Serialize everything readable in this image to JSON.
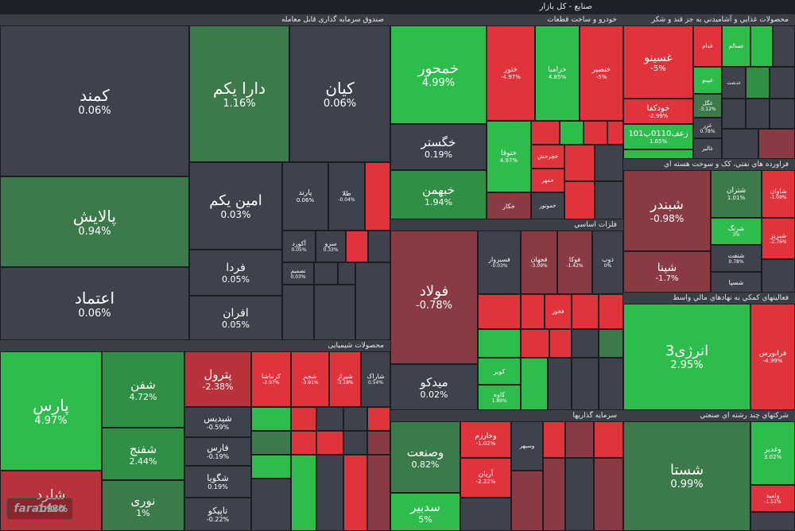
{
  "header": {
    "title": "صنایع - کل بازار"
  },
  "watermark": "farabixo",
  "colors": {
    "up": "#2ebd4c",
    "down": "#e0333c",
    "neutral": "#3d424c",
    "background": "#262931"
  },
  "sectors": {
    "fund": "صندوق سرمایه گذاری قابل معامله",
    "auto": "خودرو و ساخت قطعات",
    "food": "محصولات غذایي و آشاميدني به جز قند و شکر",
    "metal": "فلزات اساسي",
    "oil": "فراورده هاي نفتي، کک و سوخت هسته اي",
    "chem": "محصولات شیمیایی",
    "support": "فعاليتهاي كمكي به نهادهاي مالي واسط",
    "invest": "سرمايه گذاريها",
    "multi": "شرکتهاي چند رشته اي صنعتي"
  },
  "tiles": {
    "kamand": {
      "name": "کمند",
      "pct": "0.06%"
    },
    "pallaysh": {
      "name": "پالايش",
      "pct": "0.94%"
    },
    "etemad": {
      "name": "اعتماد",
      "pct": "0.06%"
    },
    "dara": {
      "name": "دارا یکم",
      "pct": "1.16%"
    },
    "kian": {
      "name": "کیان",
      "pct": "0.06%"
    },
    "amin": {
      "name": "امین یکم",
      "pct": "0.03%"
    },
    "parand": {
      "name": "پارند",
      "pct": "0.06%"
    },
    "tala": {
      "name": "طلا",
      "pct": "-0.04%"
    },
    "sarv": {
      "name": "سرو",
      "pct": "0.33%"
    },
    "akord": {
      "name": "آکورد",
      "pct": "0.05%"
    },
    "tasmim": {
      "name": "تصمیم",
      "pct": "0.03%"
    },
    "farda": {
      "name": "فردا",
      "pct": "0.05%"
    },
    "afran": {
      "name": "افران",
      "pct": "0.05%"
    },
    "khamhor": {
      "name": "خمحور",
      "pct": "4.99%"
    },
    "khetor": {
      "name": "ختور",
      "pct": "-4.97%"
    },
    "khazamia": {
      "name": "خزامیا",
      "pct": "4.85%"
    },
    "khanasir": {
      "name": "خنصیر",
      "pct": "-5%"
    },
    "khegostar": {
      "name": "خگستر",
      "pct": "0.19%"
    },
    "khbahman": {
      "name": "خبهمن",
      "pct": "1.94%"
    },
    "khtoga": {
      "name": "ختوقا",
      "pct": "4.97%"
    },
    "khakar": {
      "name": "خکار",
      "pct": ""
    },
    "khmehr": {
      "name": "خمهر",
      "pct": ""
    },
    "khamoto": {
      "name": "خموتور",
      "pct": ""
    },
    "khechar": {
      "name": "خچرخش",
      "pct": ""
    },
    "ghasino": {
      "name": "غسینو",
      "pct": "-5%"
    },
    "khodkafa": {
      "name": "خودکفا",
      "pct": "-2.99%"
    },
    "zafaran": {
      "name": "زعف0110پ101",
      "pct": "1.65%"
    },
    "ghadam": {
      "name": "غدام",
      "pct": ""
    },
    "ghsalam": {
      "name": "غسالم",
      "pct": ""
    },
    "ghpino": {
      "name": "غپینو",
      "pct": ""
    },
    "ghgol": {
      "name": "غگل",
      "pct": "-3.12%"
    },
    "ghzar": {
      "name": "غزر",
      "pct": "0.78%"
    },
    "ghdasht": {
      "name": "غدشت",
      "pct": ""
    },
    "ghlbar": {
      "name": "غالبر",
      "pct": ""
    },
    "foolad": {
      "name": "فولاد",
      "pct": "-0.78%"
    },
    "midco": {
      "name": "میدکو",
      "pct": "0.02%"
    },
    "fasazvar": {
      "name": "فسبزوار",
      "pct": "-0.03%"
    },
    "fajahan": {
      "name": "فجهان",
      "pct": "-3.09%"
    },
    "foka": {
      "name": "فوکا",
      "pct": "-1.42%"
    },
    "zob": {
      "name": "ذوب",
      "pct": "0%"
    },
    "fkhooz": {
      "name": "فخوز",
      "pct": ""
    },
    "kaveh": {
      "name": "کاوه",
      "pct": "1.89%"
    },
    "kavir": {
      "name": "کویر",
      "pct": ""
    },
    "shabandar": {
      "name": "شبندر",
      "pct": "-0.98%"
    },
    "shapna": {
      "name": "شپنا",
      "pct": "-1.7%"
    },
    "shatran": {
      "name": "شتران",
      "pct": "1.01%"
    },
    "shavan": {
      "name": "شاوان",
      "pct": "-1.08%"
    },
    "shrang": {
      "name": "شرنگ",
      "pct": "3%"
    },
    "shabriz": {
      "name": "شبریز",
      "pct": "-2.76%"
    },
    "shanft": {
      "name": "شنفت",
      "pct": "0.78%"
    },
    "shesma": {
      "name": "شسپا",
      "pct": ""
    },
    "shfn": {
      "name": "شفن",
      "pct": "4.72%"
    },
    "pars": {
      "name": "پارس",
      "pct": "4.97%"
    },
    "shlrd": {
      "name": "شلرد",
      "pct": "-1.93%"
    },
    "shfnj": {
      "name": "شفنج",
      "pct": "2.44%"
    },
    "noori": {
      "name": "نوری",
      "pct": "1%"
    },
    "petrol": {
      "name": "پترول",
      "pct": "-2.38%"
    },
    "shedis": {
      "name": "شیدیس",
      "pct": "-0.59%"
    },
    "fars": {
      "name": "فارس",
      "pct": "-0.19%"
    },
    "shgoia": {
      "name": "شگویا",
      "pct": "0.19%"
    },
    "tapiko": {
      "name": "تاپیکو",
      "pct": "-0.22%"
    },
    "kermasha": {
      "name": "کرماشا",
      "pct": "-2.97%"
    },
    "shejam": {
      "name": "شجم",
      "pct": "-3.91%"
    },
    "shiraz": {
      "name": "شیراز",
      "pct": "-3.18%"
    },
    "sharak": {
      "name": "شاراک",
      "pct": "0.54%"
    },
    "anerji": {
      "name": "انرژی3",
      "pct": "2.95%"
    },
    "farabors": {
      "name": "فرابورس",
      "pct": "-4.99%"
    },
    "vesanat": {
      "name": "وصنعت",
      "pct": "0.82%"
    },
    "vakharazm": {
      "name": "وخارزم",
      "pct": "-1.02%"
    },
    "sadbir": {
      "name": "سدبیر",
      "pct": "5%"
    },
    "ariyan": {
      "name": "آریان",
      "pct": "-2.22%"
    },
    "vesepeh": {
      "name": "وسپهر",
      "pct": ""
    },
    "shasta": {
      "name": "شستا",
      "pct": "0.99%"
    },
    "vaghadir": {
      "name": "وغدیر",
      "pct": "3.02%"
    },
    "vamid": {
      "name": "وامید",
      "pct": "-1.51%"
    }
  }
}
